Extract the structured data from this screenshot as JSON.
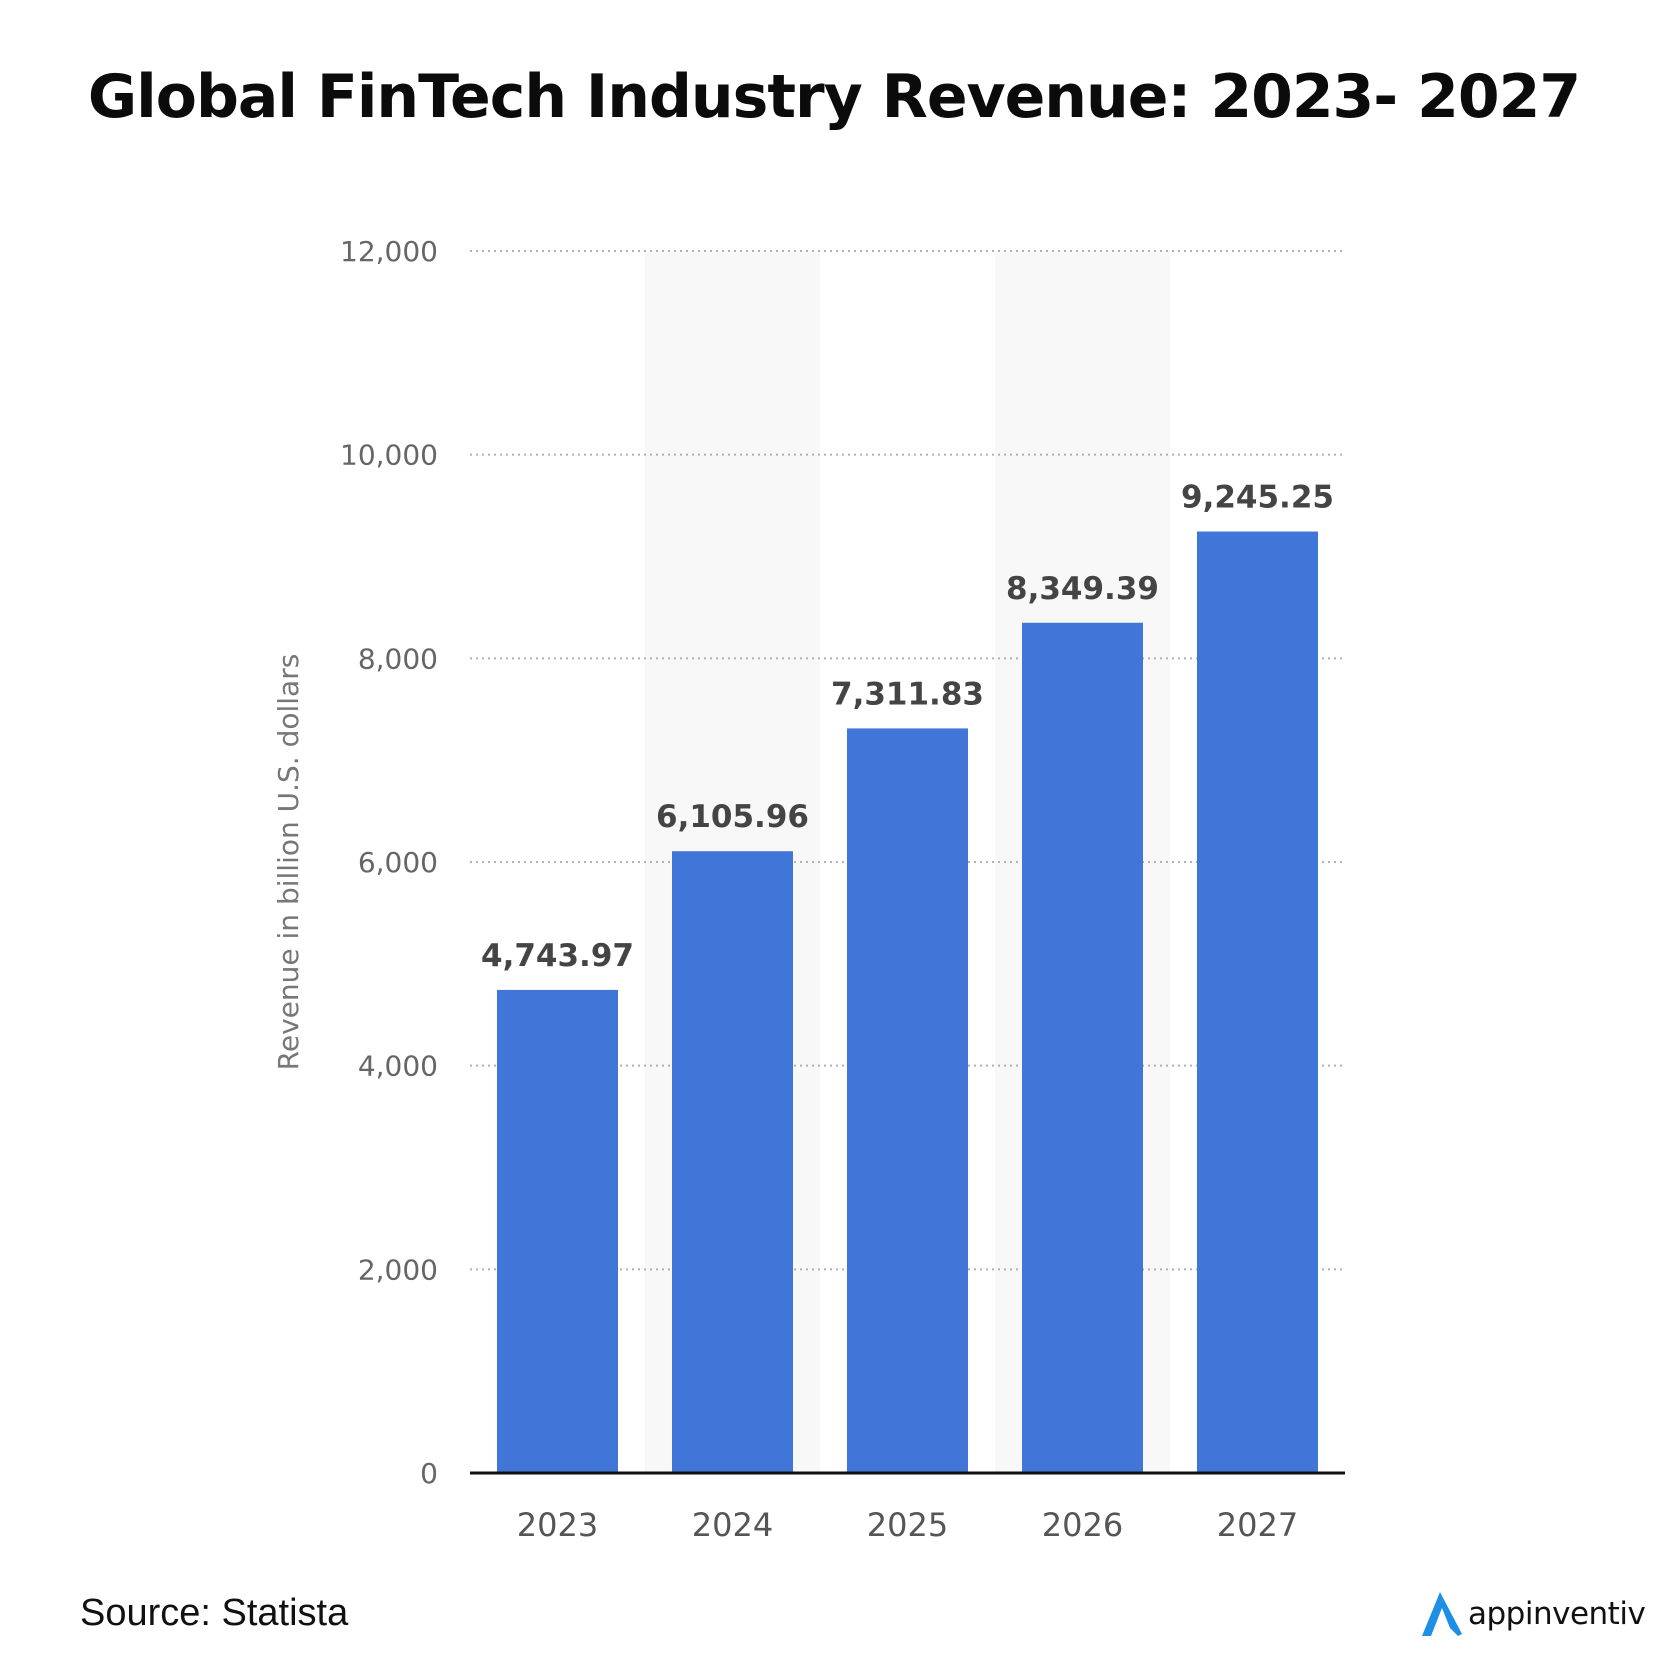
{
  "chart_data": {
    "type": "bar",
    "title": "Global FinTech Industry Revenue: 2023- 2027",
    "ylabel": "Revenue in billion U.S. dollars",
    "xlabel": "",
    "categories": [
      "2023",
      "2024",
      "2025",
      "2026",
      "2027"
    ],
    "values": [
      4743.97,
      6105.96,
      7311.83,
      8349.39,
      9245.25
    ],
    "value_labels": [
      "4,743.97",
      "6,105.96",
      "7,311.83",
      "8,349.39",
      "9,245.25"
    ],
    "ylim": [
      0,
      12000
    ],
    "yticks": [
      0,
      2000,
      4000,
      6000,
      8000,
      10000,
      12000
    ],
    "ytick_labels": [
      "0",
      "2,000",
      "4,000",
      "6,000",
      "8,000",
      "10,000",
      "12,000"
    ],
    "grid": true,
    "bar_color": "#4176d9"
  },
  "footer": {
    "source": "Source: Statista",
    "brand_name": "appinventiv",
    "brand_icon": "appinventiv-logo-icon",
    "brand_color": "#1f8fe6"
  }
}
